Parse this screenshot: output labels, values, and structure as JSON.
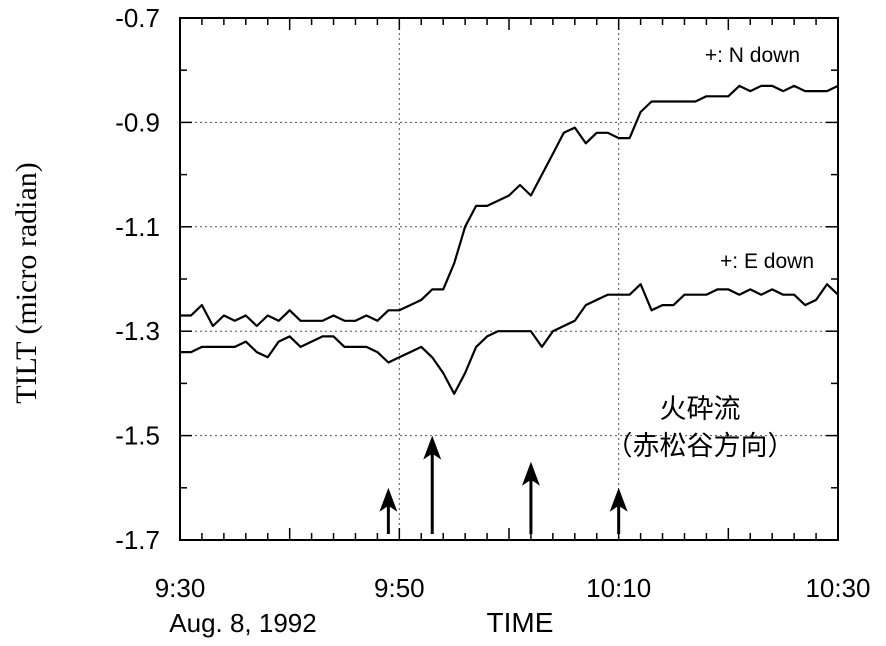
{
  "chart_data": {
    "type": "line",
    "title": "",
    "xlabel": "TIME",
    "ylabel": "TILT (micro radian)",
    "date_label": "Aug. 8, 1992",
    "x_tick_labels": [
      "9:30",
      "9:50",
      "10:10",
      "10:30"
    ],
    "x_ticks_minutes": [
      0,
      20,
      40,
      60
    ],
    "xlim": [
      0,
      60
    ],
    "ylim": [
      -1.7,
      -0.7
    ],
    "y_ticks": [
      -0.7,
      -0.9,
      -1.1,
      -1.3,
      -1.5,
      -1.7
    ],
    "y_tick_labels": [
      "-0.7",
      "-0.9",
      "-1.1",
      "-1.3",
      "-1.5",
      "-1.7"
    ],
    "grid": true,
    "series": [
      {
        "name": "+: N down",
        "x": [
          0,
          1,
          2,
          3,
          4,
          5,
          6,
          7,
          8,
          9,
          10,
          11,
          12,
          13,
          14,
          15,
          16,
          17,
          18,
          19,
          20,
          21,
          22,
          23,
          24,
          25,
          26,
          27,
          28,
          29,
          30,
          31,
          32,
          33,
          34,
          35,
          36,
          37,
          38,
          39,
          40,
          41,
          42,
          43,
          44,
          45,
          46,
          47,
          48,
          49,
          50,
          51,
          52,
          53,
          54,
          55,
          56,
          57,
          58,
          59,
          60
        ],
        "y": [
          -1.27,
          -1.27,
          -1.25,
          -1.29,
          -1.27,
          -1.28,
          -1.27,
          -1.29,
          -1.27,
          -1.28,
          -1.26,
          -1.28,
          -1.28,
          -1.28,
          -1.27,
          -1.28,
          -1.28,
          -1.27,
          -1.28,
          -1.26,
          -1.26,
          -1.25,
          -1.24,
          -1.22,
          -1.22,
          -1.17,
          -1.1,
          -1.06,
          -1.06,
          -1.05,
          -1.04,
          -1.02,
          -1.04,
          -1.0,
          -0.96,
          -0.92,
          -0.91,
          -0.94,
          -0.92,
          -0.92,
          -0.93,
          -0.93,
          -0.88,
          -0.86,
          -0.86,
          -0.86,
          -0.86,
          -0.86,
          -0.85,
          -0.85,
          -0.85,
          -0.83,
          -0.84,
          -0.83,
          -0.83,
          -0.84,
          -0.83,
          -0.84,
          -0.84,
          -0.84,
          -0.83
        ]
      },
      {
        "name": "+: E down",
        "x": [
          0,
          1,
          2,
          3,
          4,
          5,
          6,
          7,
          8,
          9,
          10,
          11,
          12,
          13,
          14,
          15,
          16,
          17,
          18,
          19,
          20,
          21,
          22,
          23,
          24,
          25,
          26,
          27,
          28,
          29,
          30,
          31,
          32,
          33,
          34,
          35,
          36,
          37,
          38,
          39,
          40,
          41,
          42,
          43,
          44,
          45,
          46,
          47,
          48,
          49,
          50,
          51,
          52,
          53,
          54,
          55,
          56,
          57,
          58,
          59,
          60
        ],
        "y": [
          -1.34,
          -1.34,
          -1.33,
          -1.33,
          -1.33,
          -1.33,
          -1.32,
          -1.34,
          -1.35,
          -1.32,
          -1.31,
          -1.33,
          -1.32,
          -1.31,
          -1.31,
          -1.33,
          -1.33,
          -1.33,
          -1.34,
          -1.36,
          -1.35,
          -1.34,
          -1.33,
          -1.35,
          -1.38,
          -1.42,
          -1.38,
          -1.33,
          -1.31,
          -1.3,
          -1.3,
          -1.3,
          -1.3,
          -1.33,
          -1.3,
          -1.29,
          -1.28,
          -1.25,
          -1.24,
          -1.23,
          -1.23,
          -1.23,
          -1.21,
          -1.26,
          -1.25,
          -1.25,
          -1.23,
          -1.23,
          -1.23,
          -1.22,
          -1.22,
          -1.23,
          -1.22,
          -1.23,
          -1.22,
          -1.23,
          -1.23,
          -1.25,
          -1.24,
          -1.21,
          -1.23
        ]
      }
    ],
    "annotations": {
      "title_line1": "火砕流",
      "title_line2": "（赤松谷方向）",
      "arrows": [
        {
          "x_min": 19,
          "label": ""
        },
        {
          "x_min": 23,
          "label": ""
        },
        {
          "x_min": 32,
          "label": ""
        },
        {
          "x_min": 40,
          "label": ""
        }
      ],
      "arrow_tops": [
        -1.6,
        -1.5,
        -1.55,
        -1.6
      ]
    }
  }
}
